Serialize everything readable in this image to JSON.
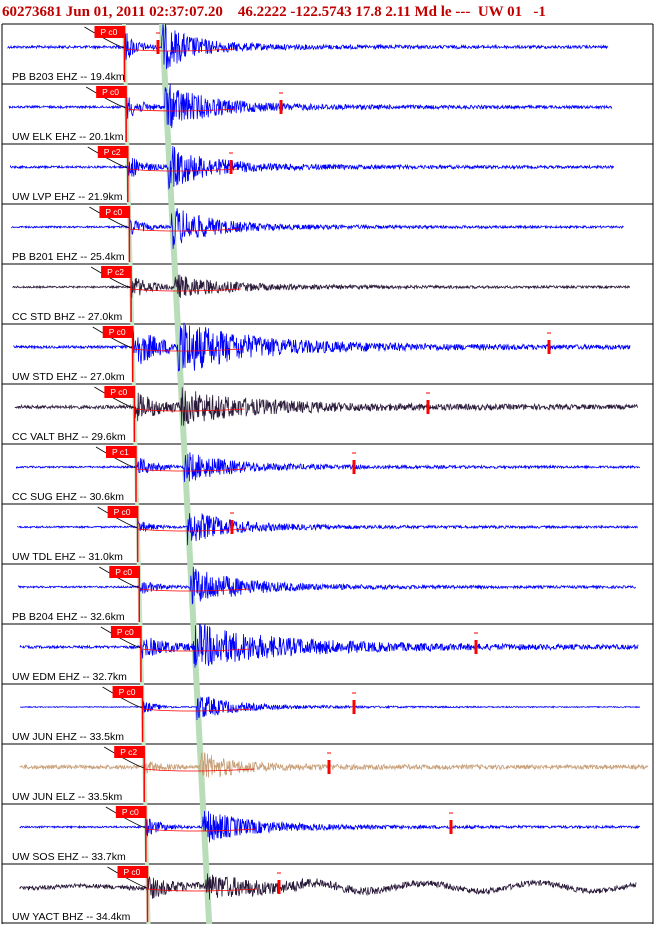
{
  "header": {
    "text": "60273681 Jun 01, 2011 02:37:07.20    46.2222 -122.5743 17.8 2.11 Md le ---  UW 01   -1"
  },
  "colors": {
    "trace_blue": "#0000ff",
    "trace_dark": "#2a1a3a",
    "trace_tan": "#c8a07a",
    "pick": "#ff0000",
    "s_band": "#b8ddb8",
    "p_band": "#c8e8c8"
  },
  "chart_data": {
    "type": "seismogram",
    "title": "60273681 Jun 01, 2011 02:37:07.20    46.2222 -122.5743 17.8 2.11 Md le ---  UW 01   -1",
    "traces": [
      {
        "label": "PB B203 EHZ -- 19.4km",
        "pick": "P c0",
        "color": "blue",
        "noise": 0.06,
        "p_amp": 0.75,
        "s_amp": 0.95,
        "decay": 0.9,
        "end_pick": true
      },
      {
        "label": "UW ELK EHZ -- 20.1km",
        "pick": "P c0",
        "color": "blue",
        "noise": 0.05,
        "p_amp": 0.55,
        "s_amp": 0.9,
        "decay": 1.3,
        "end_pick": true
      },
      {
        "label": "UW LVP EHZ -- 21.9km",
        "pick": "P c2",
        "color": "blue",
        "noise": 0.05,
        "p_amp": 0.6,
        "s_amp": 0.85,
        "decay": 1.2,
        "end_pick": true
      },
      {
        "label": "PB B201 EHZ -- 25.4km",
        "pick": "P c0",
        "color": "blue",
        "noise": 0.04,
        "p_amp": 0.45,
        "s_amp": 0.85,
        "decay": 1.1,
        "end_pick": false
      },
      {
        "label": "CC STD BHZ -- 27.0km",
        "pick": "P c2",
        "color": "dark",
        "noise": 0.04,
        "p_amp": 0.55,
        "s_amp": 0.45,
        "decay": 1.6,
        "end_pick": false
      },
      {
        "label": "UW STD EHZ -- 27.0km",
        "pick": "P c0",
        "color": "blue",
        "noise": 0.06,
        "p_amp": 1.0,
        "s_amp": 1.0,
        "decay": 2.2,
        "end_pick": true
      },
      {
        "label": "CC VALT BHZ -- 29.6km",
        "pick": "P c0",
        "color": "dark",
        "noise": 0.08,
        "p_amp": 0.65,
        "s_amp": 0.6,
        "decay": 2.4,
        "end_pick": true
      },
      {
        "label": "CC SUG EHZ -- 30.6km",
        "pick": "P c1",
        "color": "blue",
        "noise": 0.04,
        "p_amp": 0.5,
        "s_amp": 0.6,
        "decay": 1.4,
        "end_pick": true
      },
      {
        "label": "UW TDL EHZ -- 31.0km",
        "pick": "P c0",
        "color": "blue",
        "noise": 0.04,
        "p_amp": 0.3,
        "s_amp": 0.7,
        "decay": 1.2,
        "end_pick": true
      },
      {
        "label": "PB B204 EHZ -- 32.6km",
        "pick": "P c0",
        "color": "blue",
        "noise": 0.04,
        "p_amp": 0.35,
        "s_amp": 0.8,
        "decay": 1.4,
        "end_pick": false
      },
      {
        "label": "UW EDM EHZ -- 32.7km",
        "pick": "P c0",
        "color": "blue",
        "noise": 0.06,
        "p_amp": 0.5,
        "s_amp": 0.85,
        "decay": 2.6,
        "end_pick": true
      },
      {
        "label": "UW JUN EHZ -- 33.5km",
        "pick": "P c0",
        "color": "blue",
        "noise": 0.02,
        "p_amp": 0.35,
        "s_amp": 0.55,
        "decay": 1.0,
        "end_pick": true
      },
      {
        "label": "UW JUN ELZ -- 33.5km",
        "pick": "P c2",
        "color": "tan",
        "noise": 0.09,
        "p_amp": 0.3,
        "s_amp": 0.55,
        "decay": 1.0,
        "end_pick": true
      },
      {
        "label": "UW SOS EHZ -- 33.7km",
        "pick": "P c0",
        "color": "blue",
        "noise": 0.04,
        "p_amp": 0.45,
        "s_amp": 0.7,
        "decay": 1.3,
        "end_pick": true
      },
      {
        "label": "UW YACT BHZ -- 34.4km",
        "pick": "P c0",
        "color": "dark",
        "noise": 0.1,
        "p_amp": 0.5,
        "s_amp": 0.45,
        "decay": 2.0,
        "end_pick": true
      }
    ]
  }
}
